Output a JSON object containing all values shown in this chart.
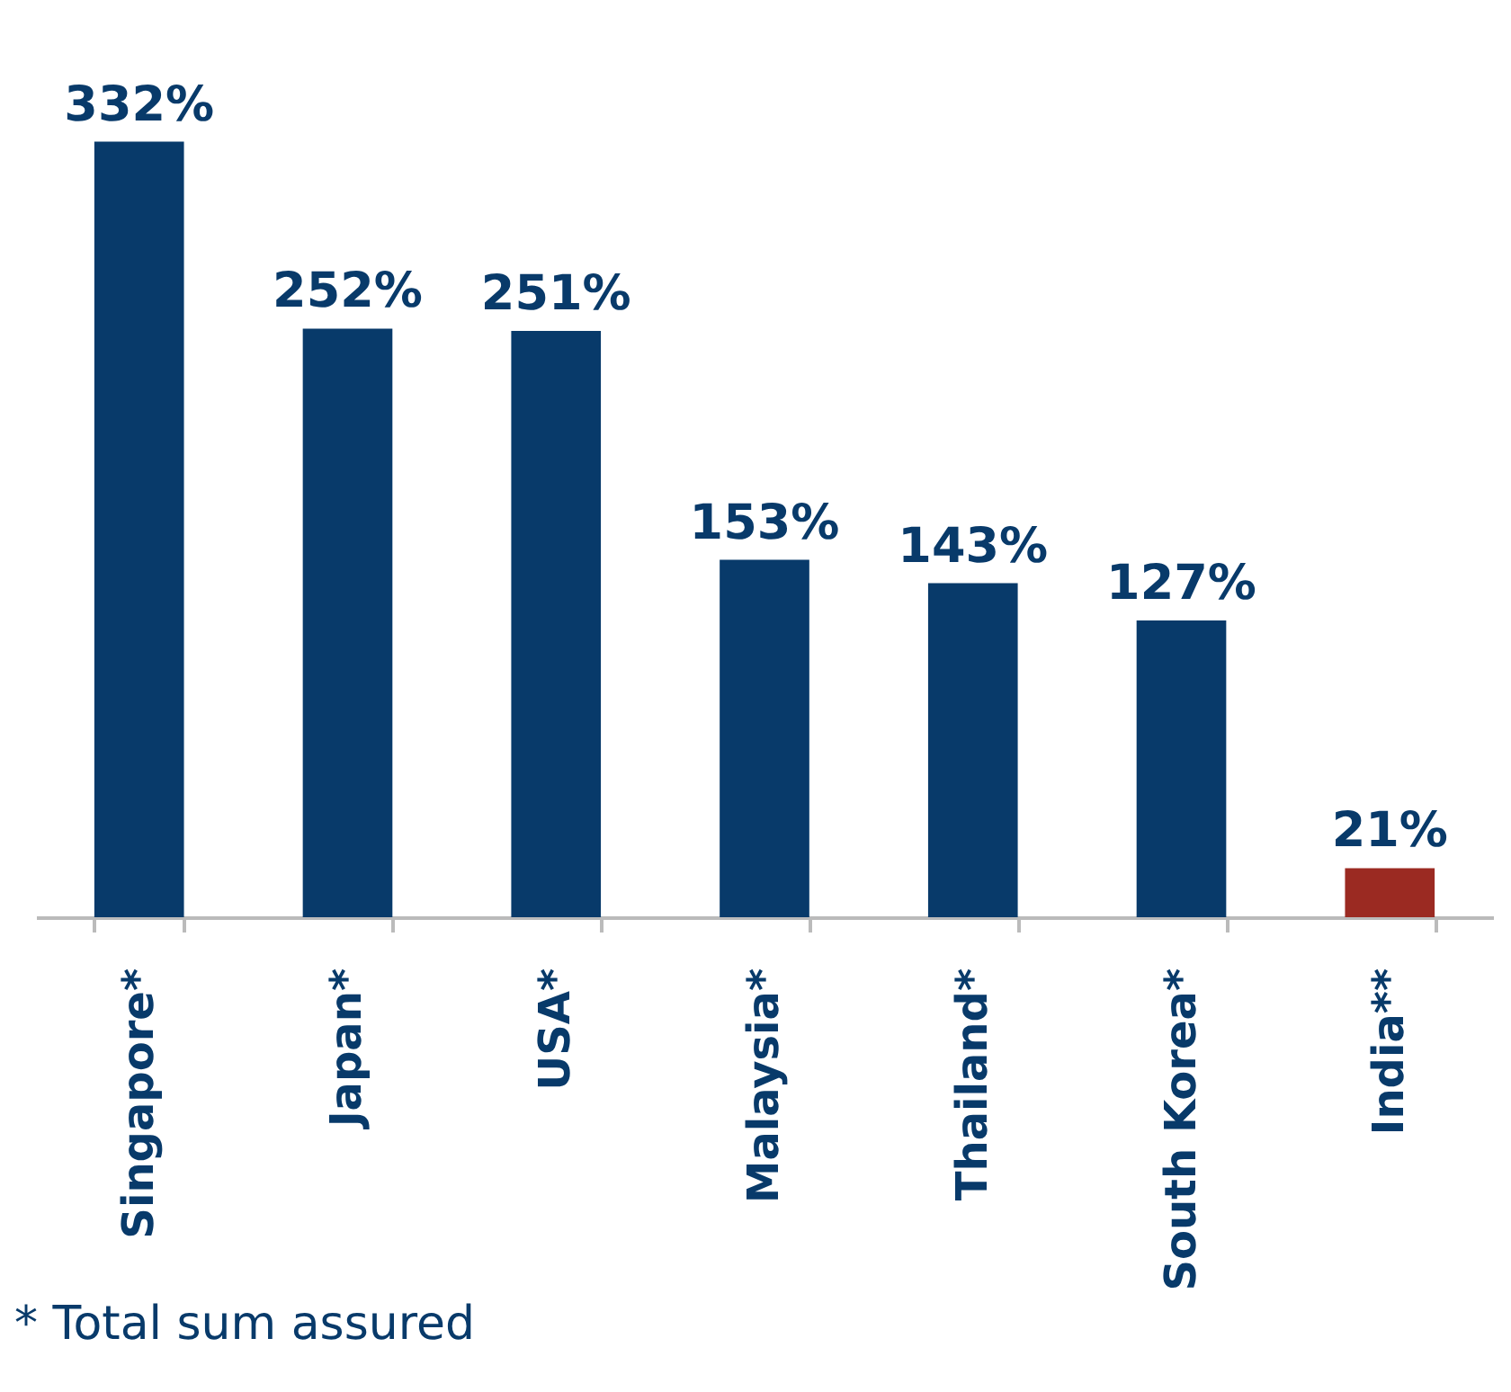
{
  "chart_data": {
    "type": "bar",
    "categories": [
      "Singapore*",
      "Japan*",
      "USA*",
      "Malaysia*",
      "Thailand*",
      "South Korea*",
      "India**"
    ],
    "values": [
      332,
      252,
      251,
      153,
      143,
      127,
      21
    ],
    "value_labels": [
      "332%",
      "252%",
      "251%",
      "153%",
      "143%",
      "127%",
      "21%"
    ],
    "colors": [
      "#083a6a",
      "#083a6a",
      "#083a6a",
      "#083a6a",
      "#083a6a",
      "#083a6a",
      "#9b2a22"
    ],
    "annotations": [
      "* Total sum assured"
    ]
  }
}
